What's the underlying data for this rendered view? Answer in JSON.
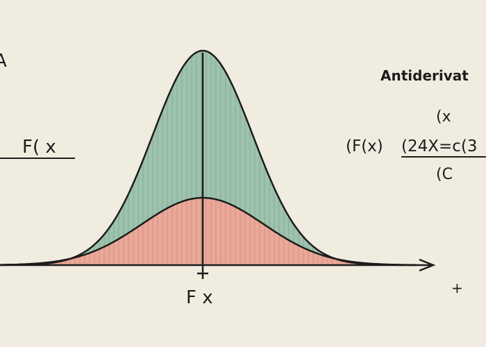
{
  "left_label": {
    "edge": "A",
    "function": "F( x"
  },
  "axis_label": "F x",
  "axis_plus": "+",
  "formula": {
    "title": "Antiderivat",
    "top": "(x",
    "left": "(F(x)",
    "numerator": "(24X=c(3",
    "bottom": "(C"
  }
}
